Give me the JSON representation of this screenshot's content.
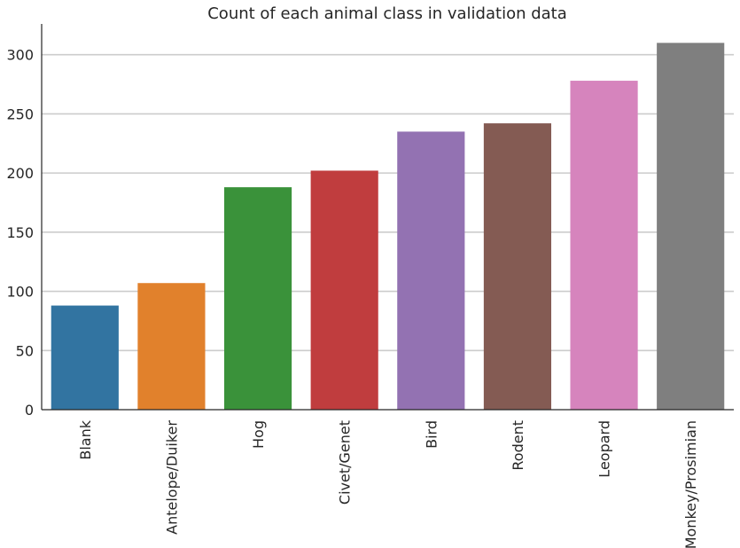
{
  "chart_data": {
    "type": "bar",
    "title": "Count of each animal class in validation data",
    "xlabel": "",
    "ylabel": "",
    "categories": [
      "Blank",
      "Antelope/Duiker",
      "Hog",
      "Civet/Genet",
      "Bird",
      "Rodent",
      "Leopard",
      "Monkey/Prosimian"
    ],
    "values": [
      88,
      107,
      188,
      202,
      235,
      242,
      278,
      310
    ],
    "colors": [
      "#3274a1",
      "#e1812c",
      "#3a923a",
      "#c03d3e",
      "#9372b2",
      "#845b53",
      "#d684bd",
      "#7f7f7f"
    ],
    "yticks": [
      0,
      50,
      100,
      150,
      200,
      250,
      300
    ],
    "ylim": [
      0,
      326
    ],
    "grid": true,
    "legend": "none"
  }
}
